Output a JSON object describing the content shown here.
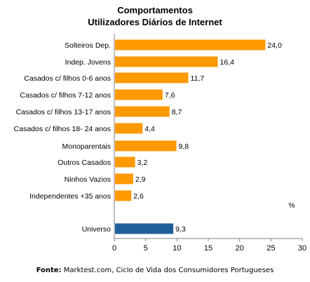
{
  "chart_data": {
    "type": "bar",
    "orientation": "horizontal",
    "title": "Comportamentos",
    "subtitle": "Utilizadores Diários de Internet",
    "categories": [
      "Solteiros Dep.",
      "Indep. Jovens",
      "Casados c/ filhos  0-6 anos",
      "Casados c/ filhos 7-12 anos",
      "Casados c/ filhos 13-17 anos",
      "Casados c/ filhos 18- 24 anos",
      "Monoparentais",
      "Outros Casados",
      "Ninhos Vazios",
      "Independentes +35 anos",
      "Universo"
    ],
    "values": [
      24.0,
      16.4,
      11.7,
      7.6,
      8.7,
      4.4,
      9.8,
      3.2,
      2.9,
      2.6,
      9.3
    ],
    "value_labels": [
      "24,0",
      "16,4",
      "11,7",
      "7,6",
      "8,7",
      "4,4",
      "9,8",
      "3,2",
      "2,9",
      "2,6",
      "9,3"
    ],
    "bar_colors": [
      "#FF9900",
      "#FF9900",
      "#FF9900",
      "#FF9900",
      "#FF9900",
      "#FF9900",
      "#FF9900",
      "#FF9900",
      "#FF9900",
      "#FF9900",
      "#1F5F9A"
    ],
    "unit_label": "%",
    "xlim": [
      0,
      30
    ],
    "xticks": [
      "0",
      "5",
      "10",
      "15",
      "20",
      "25",
      "30"
    ],
    "grid": false
  },
  "source": {
    "label": "Fonte:",
    "text": " Marktest.com, Ciclo de Vida dos Consumidores Portugueses"
  }
}
